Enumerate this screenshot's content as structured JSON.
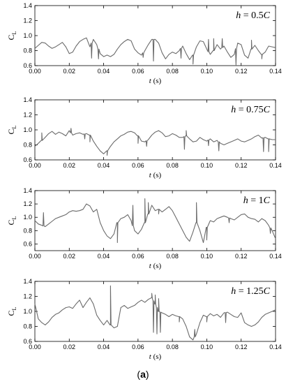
{
  "figure_caption": {
    "open": "(",
    "letter": "a",
    "close": ")"
  },
  "chart_data": [
    {
      "type": "line",
      "annotation": {
        "lhs": "h",
        "eq": " = ",
        "rhs": "0.5",
        "unit": "C"
      },
      "xlabel": {
        "var": "t",
        "unit": " (s)"
      },
      "ylabel": "C_L",
      "xlim": [
        0,
        0.14
      ],
      "ylim": [
        0.6,
        1.4
      ],
      "xticks": [
        "0.00",
        "0.02",
        "0.04",
        "0.06",
        "0.08",
        "0.10",
        "0.12",
        "0.14"
      ],
      "yticks": [
        "0.6",
        "0.8",
        "1.0",
        "1.2",
        "1.4"
      ],
      "series": [
        {
          "x": [
            0,
            0.002,
            0.004,
            0.006,
            0.008,
            0.01,
            0.012,
            0.014,
            0.016,
            0.018,
            0.02,
            0.022,
            0.024,
            0.026,
            0.028,
            0.03,
            0.032,
            0.034,
            0.036,
            0.038,
            0.04,
            0.042,
            0.044,
            0.046,
            0.048,
            0.05,
            0.052,
            0.054,
            0.056,
            0.058,
            0.06,
            0.062,
            0.064,
            0.066,
            0.068,
            0.07,
            0.072,
            0.074,
            0.076,
            0.078,
            0.08,
            0.082,
            0.084,
            0.086,
            0.088,
            0.09,
            0.092,
            0.094,
            0.096,
            0.098,
            0.1,
            0.102,
            0.104,
            0.106,
            0.108,
            0.11,
            0.112,
            0.114,
            0.116,
            0.118,
            0.12,
            0.122,
            0.124,
            0.126,
            0.128,
            0.13,
            0.132,
            0.134,
            0.136,
            0.138,
            0.14
          ],
          "y": [
            0.83,
            0.87,
            0.91,
            0.9,
            0.86,
            0.83,
            0.85,
            0.88,
            0.91,
            0.85,
            0.76,
            0.78,
            0.86,
            0.92,
            0.95,
            0.97,
            0.85,
            0.95,
            0.88,
            0.76,
            0.72,
            0.74,
            0.72,
            0.75,
            0.82,
            0.88,
            0.92,
            0.95,
            0.93,
            0.82,
            0.77,
            0.74,
            0.8,
            0.88,
            0.95,
            0.95,
            0.9,
            0.77,
            0.69,
            0.75,
            0.78,
            0.76,
            0.8,
            0.86,
            0.76,
            0.68,
            0.74,
            0.85,
            0.93,
            0.92,
            0.82,
            0.75,
            0.8,
            0.88,
            0.82,
            0.86,
            0.78,
            0.71,
            0.75,
            0.9,
            0.88,
            0.74,
            0.7,
            0.82,
            0.87,
            0.8,
            0.75,
            0.78,
            0.86,
            0.85,
            0.84
          ],
          "spikes": [
            {
              "x": 0.033,
              "y": 0.7
            },
            {
              "x": 0.037,
              "y": 0.69
            },
            {
              "x": 0.063,
              "y": 0.71
            },
            {
              "x": 0.069,
              "y": 0.66
            },
            {
              "x": 0.085,
              "y": 0.7
            },
            {
              "x": 0.092,
              "y": 0.62
            },
            {
              "x": 0.101,
              "y": 0.95
            },
            {
              "x": 0.104,
              "y": 0.96
            },
            {
              "x": 0.109,
              "y": 0.96
            },
            {
              "x": 0.117,
              "y": 0.61
            },
            {
              "x": 0.126,
              "y": 0.94
            },
            {
              "x": 0.132,
              "y": 0.69
            }
          ]
        }
      ]
    },
    {
      "type": "line",
      "annotation": {
        "lhs": "h",
        "eq": " = ",
        "rhs": "0.75",
        "unit": "C"
      },
      "xlabel": {
        "var": "t",
        "unit": " (s)"
      },
      "ylabel": "C_L",
      "xlim": [
        0,
        0.14
      ],
      "ylim": [
        0.6,
        1.4
      ],
      "xticks": [
        "0.00",
        "0.02",
        "0.04",
        "0.06",
        "0.08",
        "0.10",
        "0.12",
        "0.14"
      ],
      "yticks": [
        "0.6",
        "0.8",
        "1.0",
        "1.2",
        "1.4"
      ],
      "series": [
        {
          "x": [
            0,
            0.002,
            0.004,
            0.006,
            0.008,
            0.01,
            0.012,
            0.014,
            0.016,
            0.018,
            0.02,
            0.022,
            0.024,
            0.026,
            0.028,
            0.03,
            0.032,
            0.034,
            0.036,
            0.038,
            0.04,
            0.042,
            0.044,
            0.046,
            0.048,
            0.05,
            0.052,
            0.054,
            0.056,
            0.058,
            0.06,
            0.062,
            0.064,
            0.066,
            0.068,
            0.07,
            0.072,
            0.074,
            0.076,
            0.078,
            0.08,
            0.082,
            0.084,
            0.086,
            0.088,
            0.09,
            0.092,
            0.094,
            0.096,
            0.098,
            0.1,
            0.102,
            0.104,
            0.106,
            0.108,
            0.11,
            0.112,
            0.114,
            0.116,
            0.118,
            0.12,
            0.122,
            0.124,
            0.126,
            0.128,
            0.13,
            0.132,
            0.134,
            0.136,
            0.138,
            0.14
          ],
          "y": [
            0.78,
            0.82,
            0.86,
            0.9,
            0.95,
            0.98,
            0.94,
            0.97,
            0.95,
            0.92,
            0.99,
            0.93,
            0.95,
            0.96,
            0.94,
            0.95,
            0.93,
            0.85,
            0.78,
            0.72,
            0.68,
            0.72,
            0.78,
            0.84,
            0.88,
            0.92,
            0.94,
            0.97,
            0.98,
            0.96,
            0.92,
            0.85,
            0.84,
            0.87,
            0.93,
            0.97,
            0.99,
            0.96,
            0.91,
            0.92,
            0.95,
            0.93,
            0.9,
            0.9,
            0.92,
            0.88,
            0.84,
            0.85,
            0.9,
            0.87,
            0.85,
            0.88,
            0.84,
            0.86,
            0.82,
            0.8,
            0.82,
            0.84,
            0.86,
            0.88,
            0.85,
            0.84,
            0.86,
            0.88,
            0.91,
            0.93,
            0.89,
            0.9,
            0.88,
            0.87,
            0.87
          ],
          "spikes": [
            {
              "x": 0.004,
              "y": 0.96
            },
            {
              "x": 0.021,
              "y": 1.02
            },
            {
              "x": 0.029,
              "y": 0.88
            },
            {
              "x": 0.032,
              "y": 0.84
            },
            {
              "x": 0.042,
              "y": 0.66
            },
            {
              "x": 0.06,
              "y": 0.82
            },
            {
              "x": 0.065,
              "y": 0.78
            },
            {
              "x": 0.087,
              "y": 0.74
            },
            {
              "x": 0.088,
              "y": 0.99
            },
            {
              "x": 0.101,
              "y": 0.79
            },
            {
              "x": 0.107,
              "y": 0.72
            },
            {
              "x": 0.133,
              "y": 0.71
            },
            {
              "x": 0.136,
              "y": 0.71
            }
          ]
        }
      ]
    },
    {
      "type": "line",
      "annotation": {
        "lhs": "h",
        "eq": " = ",
        "rhs": "1",
        "unit": "C"
      },
      "xlabel": {
        "var": "t",
        "unit": " (s)"
      },
      "ylabel": "C_L",
      "xlim": [
        0,
        0.14
      ],
      "ylim": [
        0.5,
        1.4
      ],
      "xticks": [
        "0.00",
        "0.02",
        "0.04",
        "0.06",
        "0.08",
        "0.10",
        "0.12",
        "0.14"
      ],
      "yticks": [
        "0.6",
        "0.8",
        "1.0",
        "1.2",
        "1.4"
      ],
      "series": [
        {
          "x": [
            0,
            0.002,
            0.004,
            0.006,
            0.008,
            0.01,
            0.012,
            0.014,
            0.016,
            0.018,
            0.02,
            0.022,
            0.024,
            0.026,
            0.028,
            0.03,
            0.032,
            0.034,
            0.036,
            0.038,
            0.04,
            0.042,
            0.044,
            0.046,
            0.048,
            0.05,
            0.052,
            0.054,
            0.056,
            0.058,
            0.06,
            0.062,
            0.064,
            0.066,
            0.068,
            0.07,
            0.072,
            0.074,
            0.076,
            0.078,
            0.08,
            0.082,
            0.084,
            0.086,
            0.088,
            0.09,
            0.092,
            0.094,
            0.096,
            0.098,
            0.1,
            0.102,
            0.104,
            0.106,
            0.108,
            0.11,
            0.112,
            0.114,
            0.116,
            0.118,
            0.12,
            0.122,
            0.124,
            0.126,
            0.128,
            0.13,
            0.132,
            0.134,
            0.136,
            0.138,
            0.14
          ],
          "y": [
            0.95,
            0.9,
            0.88,
            0.86,
            0.9,
            0.94,
            0.98,
            1.0,
            1.02,
            1.04,
            1.08,
            1.1,
            1.09,
            1.1,
            1.12,
            1.2,
            1.17,
            1.08,
            1.12,
            0.92,
            0.8,
            0.72,
            0.68,
            0.75,
            0.92,
            0.98,
            1.0,
            1.04,
            0.95,
            0.8,
            0.75,
            0.82,
            0.92,
            1.05,
            1.18,
            1.1,
            1.12,
            1.08,
            1.12,
            1.16,
            1.1,
            1.0,
            0.9,
            0.8,
            0.7,
            0.64,
            0.78,
            0.92,
            0.8,
            0.62,
            0.85,
            0.95,
            0.93,
            0.98,
            1.0,
            1.02,
            1.0,
            0.98,
            0.96,
            1.0,
            1.04,
            1.05,
            1.0,
            0.98,
            0.97,
            0.93,
            0.98,
            0.95,
            0.88,
            0.8,
            0.68
          ],
          "spikes": [
            {
              "x": 0.005,
              "y": 1.07
            },
            {
              "x": 0.048,
              "y": 0.62
            },
            {
              "x": 0.057,
              "y": 1.18
            },
            {
              "x": 0.064,
              "y": 1.28
            },
            {
              "x": 0.066,
              "y": 1.22
            },
            {
              "x": 0.072,
              "y": 1.05
            },
            {
              "x": 0.094,
              "y": 1.22
            },
            {
              "x": 0.1,
              "y": 0.66
            },
            {
              "x": 0.113,
              "y": 0.92
            },
            {
              "x": 0.137,
              "y": 0.76
            }
          ]
        }
      ]
    },
    {
      "type": "line",
      "annotation": {
        "lhs": "h",
        "eq": " = ",
        "rhs": "1.25",
        "unit": "C"
      },
      "xlabel": {
        "var": "t",
        "unit": " (s)"
      },
      "ylabel": "C_L",
      "xlim": [
        0,
        0.14
      ],
      "ylim": [
        0.6,
        1.4
      ],
      "xticks": [
        "0.00",
        "0.02",
        "0.04",
        "0.06",
        "0.08",
        "0.10",
        "0.12",
        "0.14"
      ],
      "yticks": [
        "0.6",
        "0.8",
        "1.0",
        "1.2",
        "1.4"
      ],
      "series": [
        {
          "x": [
            0,
            0.002,
            0.004,
            0.006,
            0.008,
            0.01,
            0.012,
            0.014,
            0.016,
            0.018,
            0.02,
            0.022,
            0.024,
            0.026,
            0.028,
            0.03,
            0.032,
            0.034,
            0.036,
            0.038,
            0.04,
            0.042,
            0.044,
            0.046,
            0.048,
            0.05,
            0.052,
            0.054,
            0.056,
            0.058,
            0.06,
            0.062,
            0.064,
            0.066,
            0.068,
            0.07,
            0.072,
            0.074,
            0.076,
            0.078,
            0.08,
            0.082,
            0.084,
            0.086,
            0.088,
            0.09,
            0.092,
            0.094,
            0.096,
            0.098,
            0.1,
            0.102,
            0.104,
            0.106,
            0.108,
            0.11,
            0.112,
            0.114,
            0.116,
            0.118,
            0.12,
            0.122,
            0.124,
            0.126,
            0.128,
            0.13,
            0.132,
            0.134,
            0.136,
            0.138,
            0.14
          ],
          "y": [
            1.1,
            0.9,
            0.85,
            0.82,
            0.86,
            0.92,
            0.96,
            0.98,
            1.02,
            1.05,
            1.06,
            1.04,
            1.1,
            1.15,
            1.05,
            1.12,
            1.18,
            1.1,
            0.95,
            0.88,
            0.82,
            0.88,
            0.82,
            0.78,
            0.8,
            1.05,
            1.08,
            1.04,
            1.06,
            1.08,
            1.12,
            1.15,
            1.12,
            1.16,
            1.18,
            1.1,
            1.0,
            0.98,
            0.96,
            0.93,
            0.96,
            0.94,
            0.93,
            0.9,
            0.8,
            0.66,
            0.62,
            0.7,
            0.85,
            0.95,
            0.93,
            0.97,
            0.94,
            0.96,
            0.92,
            0.98,
            0.99,
            0.96,
            0.93,
            0.92,
            0.98,
            0.85,
            0.82,
            0.8,
            0.82,
            0.86,
            0.92,
            0.96,
            0.98,
            1.0,
            1.02
          ],
          "spikes": [
            {
              "x": 0.044,
              "y": 1.34
            },
            {
              "x": 0.068,
              "y": 1.24
            },
            {
              "x": 0.069,
              "y": 0.72
            },
            {
              "x": 0.07,
              "y": 1.22
            },
            {
              "x": 0.071,
              "y": 0.7
            },
            {
              "x": 0.072,
              "y": 1.17
            },
            {
              "x": 0.073,
              "y": 0.72
            },
            {
              "x": 0.084,
              "y": 0.86
            },
            {
              "x": 0.093,
              "y": 0.76
            },
            {
              "x": 0.1,
              "y": 0.86
            },
            {
              "x": 0.111,
              "y": 0.85
            }
          ]
        }
      ]
    }
  ]
}
